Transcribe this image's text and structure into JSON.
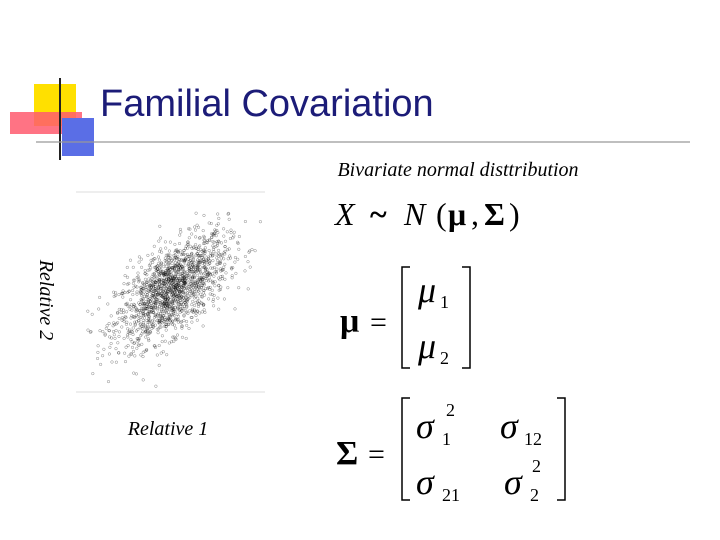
{
  "header": {
    "title": "Familial Covariation"
  },
  "caption": "Bivariate normal disttribution",
  "plot": {
    "y_label": "Relative 2",
    "x_label": "Relative 1"
  },
  "formulas": {
    "distribution": [
      "X",
      "~",
      "N",
      "(",
      "μ",
      ",",
      "Σ",
      ")"
    ],
    "mean": {
      "symbol": "μ",
      "equals": "=",
      "entries": [
        {
          "base": "μ",
          "sub": "1"
        },
        {
          "base": "μ",
          "sub": "2"
        }
      ]
    },
    "covariance": {
      "symbol": "Σ",
      "equals": "=",
      "entries": [
        [
          {
            "base": "σ",
            "sup": "2",
            "sub": "1"
          },
          {
            "base": "σ",
            "sub": "12"
          }
        ],
        [
          {
            "base": "σ",
            "sub": "21"
          },
          {
            "base": "σ",
            "sup": "2",
            "sub": "2"
          }
        ]
      ]
    }
  }
}
